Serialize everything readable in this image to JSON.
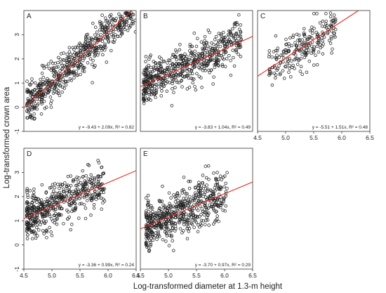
{
  "figure": {
    "ylabel": "Log-transformed crown area",
    "xlabel": "Log-transformed diameter at 1.3-m height"
  },
  "chart_data": [
    {
      "type": "scatter",
      "panel": "A",
      "equation": "y = -9.43 + 2.09x, R² = 0.82",
      "regression": {
        "intercept": -9.43,
        "slope": 2.09,
        "r2": 0.82
      },
      "xlim": [
        4.5,
        6.5
      ],
      "ylim": [
        -1,
        4
      ],
      "xticks": [],
      "yticks": [
        "-1",
        "0",
        "1",
        "2",
        "3"
      ],
      "grid": false,
      "n_points": 650,
      "seed": 11,
      "x_range": [
        4.55,
        6.5
      ],
      "x_skew": 1.1,
      "noise_sd": 0.4,
      "line_color": "#e8281e",
      "marker_color": "#222222"
    },
    {
      "type": "scatter",
      "panel": "B",
      "equation": "y = -3.83 + 1.04x, R² = 0.49",
      "regression": {
        "intercept": -3.83,
        "slope": 1.04,
        "r2": 0.49
      },
      "xlim": [
        4.5,
        6.5
      ],
      "ylim": [
        -1,
        4
      ],
      "xticks": [],
      "yticks": [],
      "grid": false,
      "n_points": 600,
      "seed": 23,
      "x_range": [
        4.55,
        6.3
      ],
      "x_skew": 1.2,
      "noise_sd": 0.42,
      "line_color": "#e8281e",
      "marker_color": "#222222"
    },
    {
      "type": "scatter",
      "panel": "C",
      "equation": "y = -5.51 + 1.51x, R² = 0.48",
      "regression": {
        "intercept": -5.51,
        "slope": 1.51,
        "r2": 0.48
      },
      "xlim": [
        4.5,
        6.5
      ],
      "ylim": [
        -1,
        4
      ],
      "xticks": [
        "4.5",
        "5.0",
        "5.5",
        "6.0",
        "6.5"
      ],
      "yticks": [],
      "grid": false,
      "n_points": 230,
      "seed": 37,
      "x_range": [
        4.7,
        5.9
      ],
      "x_skew": 1.0,
      "noise_sd": 0.42,
      "line_color": "#e8281e",
      "marker_color": "#222222"
    },
    {
      "type": "scatter",
      "panel": "D",
      "equation": "y = -3.36 + 0.99x, R² = 0.24",
      "regression": {
        "intercept": -3.36,
        "slope": 0.99,
        "r2": 0.24
      },
      "xlim": [
        4.5,
        6.5
      ],
      "ylim": [
        -1,
        4
      ],
      "xticks": [
        "4.5",
        "5.0",
        "5.5",
        "6.0",
        "6.5"
      ],
      "yticks": [
        "-1",
        "0",
        "1",
        "2",
        "3"
      ],
      "grid": false,
      "n_points": 520,
      "seed": 53,
      "x_range": [
        4.55,
        5.95
      ],
      "x_skew": 1.4,
      "noise_sd": 0.45,
      "line_color": "#e8281e",
      "marker_color": "#222222"
    },
    {
      "type": "scatter",
      "panel": "E",
      "equation": "y = -3.70 + 0.97x, R² = 0.29",
      "regression": {
        "intercept": -3.7,
        "slope": 0.97,
        "r2": 0.29
      },
      "xlim": [
        4.5,
        6.5
      ],
      "ylim": [
        -1,
        4
      ],
      "xticks": [
        "4.5",
        "5.0",
        "5.5",
        "6.0",
        "6.5"
      ],
      "yticks": [],
      "grid": false,
      "n_points": 600,
      "seed": 71,
      "x_range": [
        4.6,
        6.05
      ],
      "x_skew": 1.3,
      "noise_sd": 0.5,
      "line_color": "#e8281e",
      "marker_color": "#222222"
    }
  ]
}
